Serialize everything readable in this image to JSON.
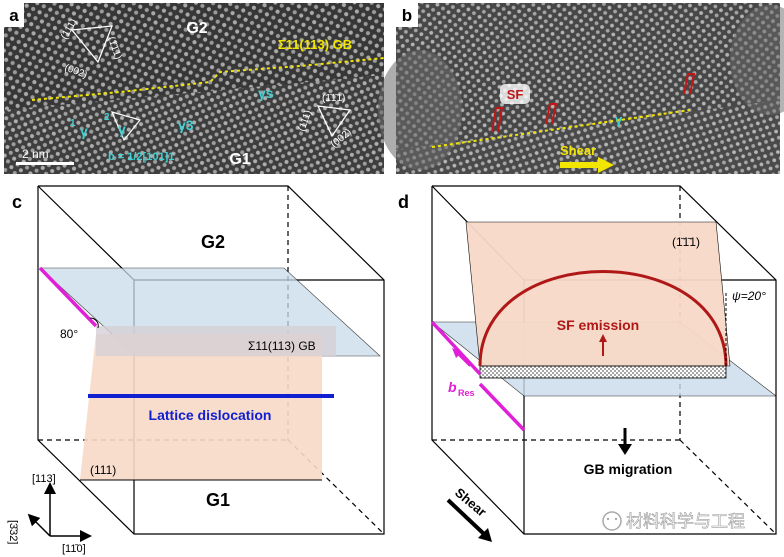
{
  "panel_a": {
    "label": "a",
    "grain_top": "G2",
    "grain_bottom": "G1",
    "gb_label": "Σ11(113) GB",
    "plane_111_top": "(111)",
    "plane_1bar11_top": "(1̄1̄1)",
    "plane_002_top": "(002)",
    "plane_1bar1bar1_right": "(1̄1̄1)",
    "plane_111_right": "(111)",
    "plane_002_right": "(002)",
    "gamma_s": "γs",
    "gamma_1_top": "1",
    "gamma_1": "γ",
    "gamma_2_top": "2",
    "gamma_2": "γ",
    "gamma_3": "γ3",
    "burgers": "b = 1/2[101]1",
    "scale_bar": "2 nm"
  },
  "panel_b": {
    "label": "b",
    "sf_label": "SF",
    "gamma": "γ",
    "shear_label": "Shear"
  },
  "panel_c": {
    "label": "c",
    "grain_top": "G2",
    "grain_bottom": "G1",
    "angle": "80°",
    "gb_label": "Σ11(113) GB",
    "dislocation_label": "Lattice dislocation",
    "plane_label": "(111)",
    "axis_113": "[113]",
    "axis_332": "[3̄32]",
    "axis_110": "[11̄0]"
  },
  "panel_d": {
    "label": "d",
    "plane_label": "(1̄1̄1)",
    "psi_label": "ψ=20°",
    "sf_emission": "SF emission",
    "b_res": "b",
    "b_res_sub": "Res",
    "gb_migration": "GB migration",
    "shear_label": "Shear"
  },
  "watermark": "材料科学与工程",
  "colors": {
    "gb_yellow": "#f2e600",
    "cyan": "#3fd1d4",
    "magenta": "#e020d8",
    "dislocation_blue": "#1020d0",
    "sf_red": "#b01818",
    "grain_plane": "#f7d9c8",
    "gb_plane": "#c9dceb",
    "shear_arrow": "#f2e600"
  }
}
